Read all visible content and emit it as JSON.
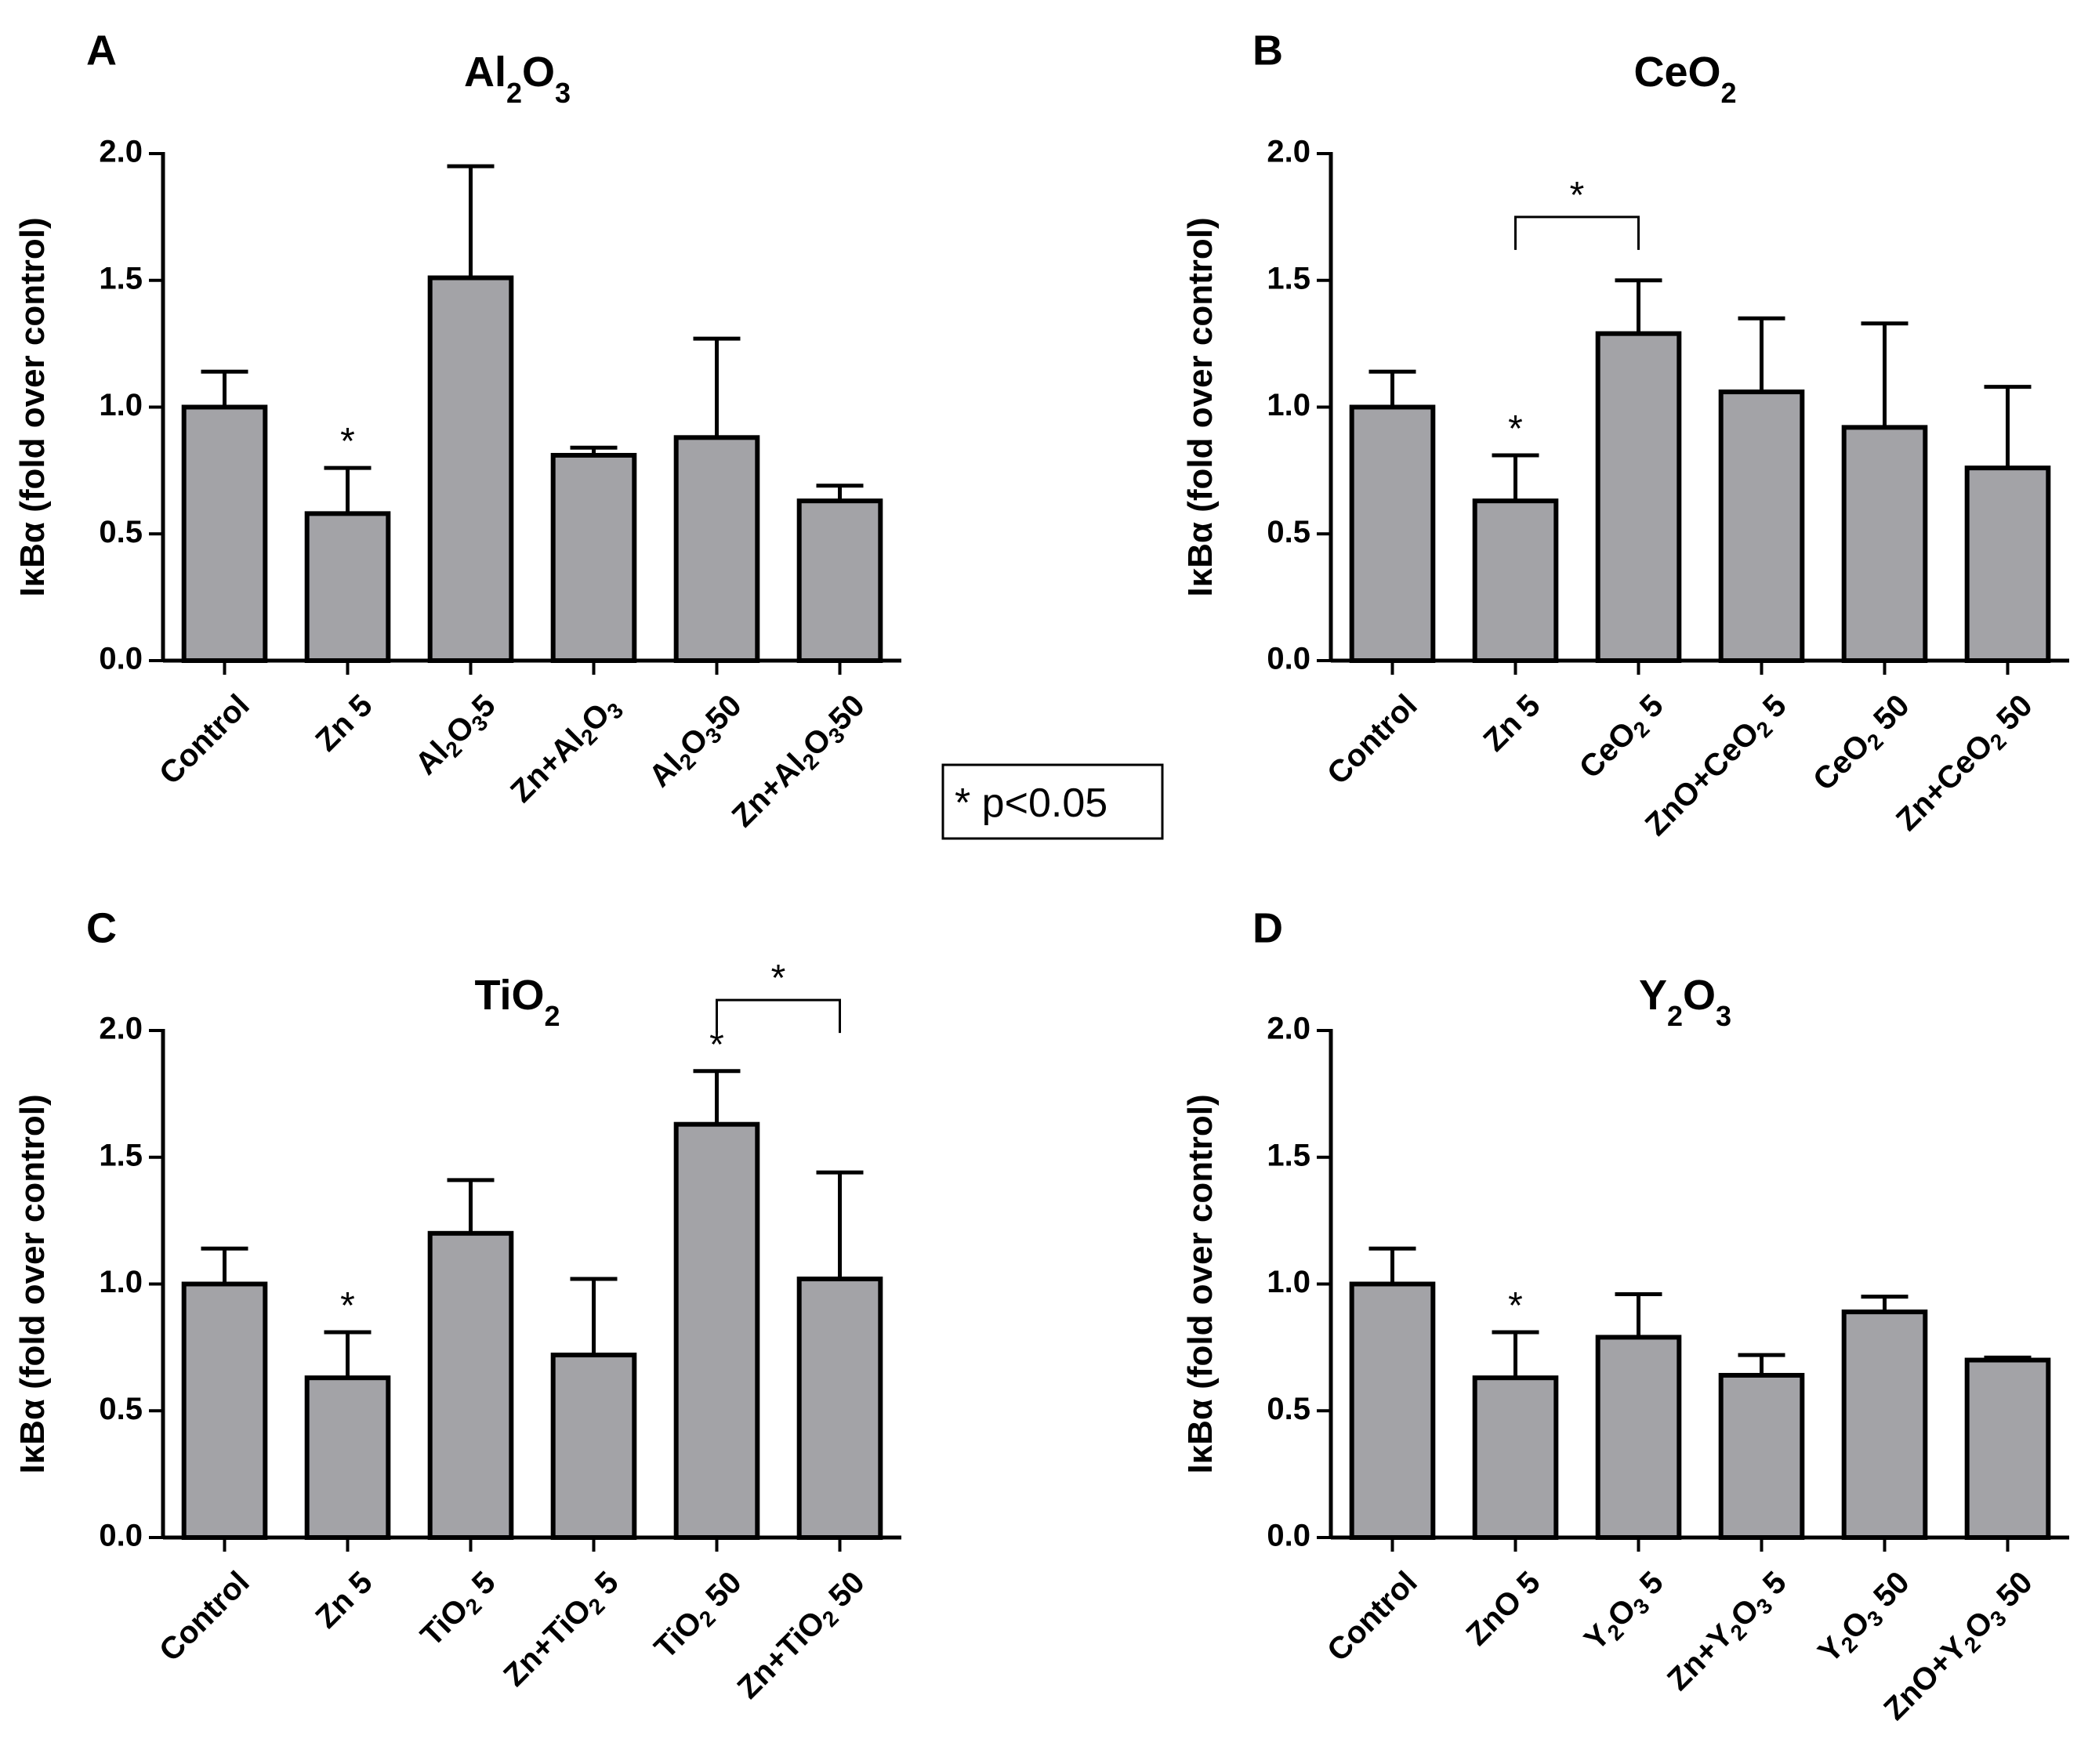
{
  "legend": {
    "text": "* p<0.05"
  },
  "colors": {
    "bar_fill": "#a3a3a7",
    "stroke": "#000000"
  },
  "chart_data": [
    {
      "type": "bar",
      "panel": "A",
      "title": "Al2O3",
      "title_parts": [
        [
          "Al",
          false
        ],
        [
          "2",
          true
        ],
        [
          "O",
          false
        ],
        [
          "3",
          true
        ]
      ],
      "ylabel": "IκBα (fold over control)",
      "ylim": [
        0,
        2.0
      ],
      "yticks": [
        "0.0",
        "0.5",
        "1.0",
        "1.5",
        "2.0"
      ],
      "categories": [
        "Control",
        "Zn 5",
        "Al2O35",
        "Zn+Al2O3",
        "Al2O350",
        "Zn+Al2O350"
      ],
      "category_parts": [
        [
          [
            "Control",
            false
          ]
        ],
        [
          [
            "Zn 5",
            false
          ]
        ],
        [
          [
            "Al",
            false
          ],
          [
            "2",
            true
          ],
          [
            "O",
            false
          ],
          [
            "3",
            true
          ],
          [
            "5",
            false
          ]
        ],
        [
          [
            "Zn+Al",
            false
          ],
          [
            "2",
            true
          ],
          [
            "O",
            false
          ],
          [
            "3",
            true
          ]
        ],
        [
          [
            "Al",
            false
          ],
          [
            "2",
            true
          ],
          [
            "O",
            false
          ],
          [
            "3",
            true
          ],
          [
            "50",
            false
          ]
        ],
        [
          [
            "Zn+Al",
            false
          ],
          [
            "2",
            true
          ],
          [
            "O",
            false
          ],
          [
            "3",
            true
          ],
          [
            "50",
            false
          ]
        ]
      ],
      "values": [
        1.0,
        0.58,
        1.51,
        0.81,
        0.88,
        0.63
      ],
      "errors": [
        0.14,
        0.18,
        0.44,
        0.03,
        0.39,
        0.06
      ],
      "significance": [
        {
          "bar": 1,
          "label": "*"
        }
      ],
      "brackets": []
    },
    {
      "type": "bar",
      "panel": "B",
      "title": "CeO2",
      "title_parts": [
        [
          "CeO",
          false
        ],
        [
          "2",
          true
        ]
      ],
      "ylabel": "IκBα (fold over control)",
      "ylim": [
        0,
        2.0
      ],
      "yticks": [
        "0.0",
        "0.5",
        "1.0",
        "1.5",
        "2.0"
      ],
      "categories": [
        "Control",
        "Zn 5",
        "CeO2 5",
        "ZnO+CeO2 5",
        "CeO2 50",
        "Zn+CeO2 50"
      ],
      "category_parts": [
        [
          [
            "Control",
            false
          ]
        ],
        [
          [
            "Zn 5",
            false
          ]
        ],
        [
          [
            "CeO",
            false
          ],
          [
            "2",
            true
          ],
          [
            " 5",
            false
          ]
        ],
        [
          [
            "ZnO+CeO",
            false
          ],
          [
            "2",
            true
          ],
          [
            " 5",
            false
          ]
        ],
        [
          [
            "CeO",
            false
          ],
          [
            "2",
            true
          ],
          [
            " 50",
            false
          ]
        ],
        [
          [
            "Zn+CeO",
            false
          ],
          [
            "2",
            true
          ],
          [
            " 50",
            false
          ]
        ]
      ],
      "values": [
        1.0,
        0.63,
        1.29,
        1.06,
        0.92,
        0.76
      ],
      "errors": [
        0.14,
        0.18,
        0.21,
        0.29,
        0.41,
        0.32
      ],
      "significance": [
        {
          "bar": 1,
          "label": "*"
        }
      ],
      "brackets": [
        {
          "from": 1,
          "to": 2,
          "label": "*",
          "level": 1.75
        }
      ]
    },
    {
      "type": "bar",
      "panel": "C",
      "title": "TiO2",
      "title_parts": [
        [
          "TiO",
          false
        ],
        [
          "2",
          true
        ]
      ],
      "ylabel": "IκBα (fold over control)",
      "ylim": [
        0,
        2.0
      ],
      "yticks": [
        "0.0",
        "0.5",
        "1.0",
        "1.5",
        "2.0"
      ],
      "categories": [
        "Control",
        "Zn 5",
        "TiO2 5",
        "Zn+TiO2 5",
        "TiO2 50",
        "Zn+TiO2 50"
      ],
      "category_parts": [
        [
          [
            "Control",
            false
          ]
        ],
        [
          [
            "Zn 5",
            false
          ]
        ],
        [
          [
            "TiO",
            false
          ],
          [
            "2",
            true
          ],
          [
            " 5",
            false
          ]
        ],
        [
          [
            "Zn+TiO",
            false
          ],
          [
            "2",
            true
          ],
          [
            " 5",
            false
          ]
        ],
        [
          [
            "TiO",
            false
          ],
          [
            "2",
            true
          ],
          [
            " 50",
            false
          ]
        ],
        [
          [
            "Zn+TiO",
            false
          ],
          [
            "2",
            true
          ],
          [
            " 50",
            false
          ]
        ]
      ],
      "values": [
        1.0,
        0.63,
        1.2,
        0.72,
        1.63,
        1.02
      ],
      "errors": [
        0.14,
        0.18,
        0.21,
        0.3,
        0.21,
        0.42
      ],
      "significance": [
        {
          "bar": 1,
          "label": "*"
        },
        {
          "bar": 4,
          "label": "*"
        }
      ],
      "brackets": [
        {
          "from": 4,
          "to": 5,
          "label": "*",
          "level": 2.12
        }
      ]
    },
    {
      "type": "bar",
      "panel": "D",
      "title": "Y2O3",
      "title_parts": [
        [
          "Y",
          false
        ],
        [
          "2",
          true
        ],
        [
          "O",
          false
        ],
        [
          "3",
          true
        ]
      ],
      "ylabel": "IκBα (fold over control)",
      "ylim": [
        0,
        2.0
      ],
      "yticks": [
        "0.0",
        "0.5",
        "1.0",
        "1.5",
        "2.0"
      ],
      "categories": [
        "Control",
        "ZnO 5",
        "Y2O3 5",
        "Zn+Y2O3 5",
        "Y2O3 50",
        "ZnO+Y2O3 50"
      ],
      "category_parts": [
        [
          [
            "Control",
            false
          ]
        ],
        [
          [
            "ZnO 5",
            false
          ]
        ],
        [
          [
            "Y",
            false
          ],
          [
            "2",
            true
          ],
          [
            "O",
            false
          ],
          [
            "3",
            true
          ],
          [
            " 5",
            false
          ]
        ],
        [
          [
            "Zn+Y",
            false
          ],
          [
            "2",
            true
          ],
          [
            "O",
            false
          ],
          [
            "3",
            true
          ],
          [
            " 5",
            false
          ]
        ],
        [
          [
            "Y",
            false
          ],
          [
            "2",
            true
          ],
          [
            "O",
            false
          ],
          [
            "3",
            true
          ],
          [
            " 50",
            false
          ]
        ],
        [
          [
            "ZnO+Y",
            false
          ],
          [
            "2",
            true
          ],
          [
            "O",
            false
          ],
          [
            "3",
            true
          ],
          [
            " 50",
            false
          ]
        ]
      ],
      "values": [
        1.0,
        0.63,
        0.79,
        0.64,
        0.89,
        0.7
      ],
      "errors": [
        0.14,
        0.18,
        0.17,
        0.08,
        0.06,
        0.01
      ],
      "significance": [
        {
          "bar": 1,
          "label": "*"
        }
      ],
      "brackets": []
    }
  ]
}
